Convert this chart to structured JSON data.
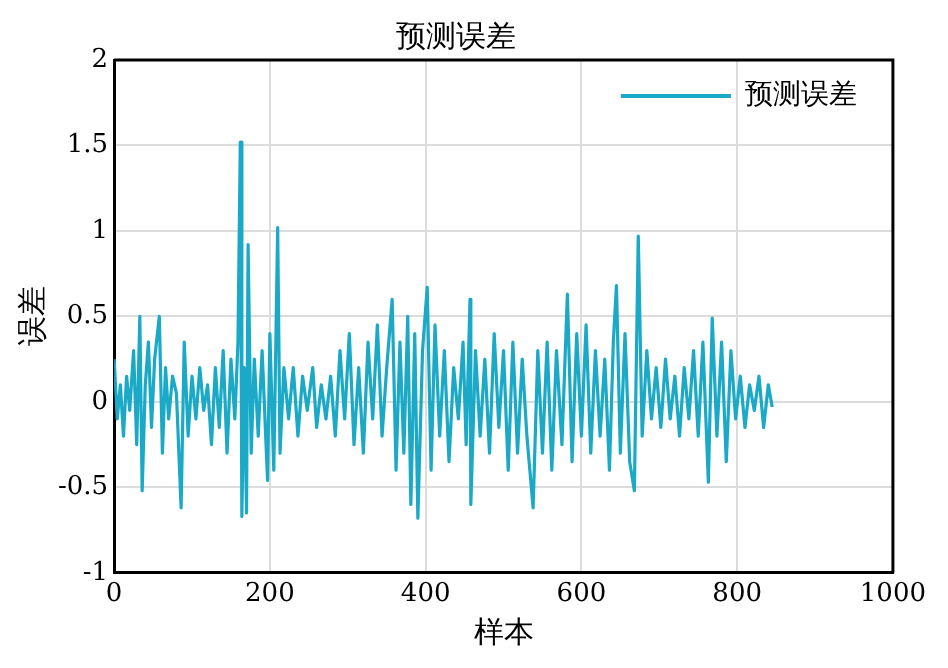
{
  "chart_data": {
    "type": "line",
    "title": "预测误差",
    "xlabel": "样本",
    "ylabel": "误差",
    "xlim": [
      0,
      1000
    ],
    "xticks": [
      0,
      200,
      400,
      600,
      800,
      1000
    ],
    "ylim": [
      -1,
      2
    ],
    "yticks": [
      -1,
      -0.5,
      0,
      0.5,
      1,
      1.5,
      2
    ],
    "grid": true,
    "legend": "top right",
    "marker": "none",
    "line_style": "solid",
    "series": [
      {
        "name": "预测误差",
        "color": "#1aa9c6",
        "x": [
          0,
          4,
          8,
          12,
          16,
          20,
          25,
          29,
          33,
          36,
          40,
          44,
          48,
          52,
          58,
          62,
          66,
          70,
          75,
          80,
          86,
          90,
          95,
          100,
          105,
          110,
          115,
          120,
          125,
          130,
          135,
          140,
          145,
          150,
          155,
          159,
          162,
          164,
          167,
          170,
          172,
          176,
          180,
          185,
          190,
          197,
          200,
          205,
          210,
          213,
          218,
          224,
          230,
          236,
          242,
          248,
          255,
          260,
          266,
          272,
          278,
          284,
          290,
          296,
          302,
          308,
          314,
          320,
          326,
          332,
          338,
          344,
          350,
          357,
          362,
          367,
          372,
          377,
          381,
          386,
          390,
          396,
          402,
          407,
          412,
          418,
          424,
          430,
          436,
          442,
          448,
          452,
          457,
          458,
          464,
          470,
          476,
          482,
          488,
          494,
          500,
          506,
          512,
          518,
          524,
          530,
          538,
          544,
          550,
          556,
          562,
          568,
          575,
          582,
          588,
          594,
          600,
          606,
          612,
          618,
          624,
          630,
          636,
          641,
          645,
          650,
          656,
          662,
          668,
          673,
          678,
          684,
          690,
          696,
          702,
          708,
          714,
          720,
          726,
          732,
          738,
          744,
          750,
          756,
          763,
          768,
          774,
          780,
          786,
          792,
          798,
          804,
          810,
          816,
          822,
          828,
          834,
          840,
          845
        ],
        "values": [
          0.25,
          -0.1,
          0.1,
          -0.2,
          0.15,
          -0.05,
          0.3,
          -0.25,
          0.5,
          -0.52,
          0.1,
          0.35,
          -0.15,
          0.25,
          0.5,
          -0.3,
          0.2,
          -0.1,
          0.15,
          0.05,
          -0.62,
          0.35,
          -0.2,
          0.15,
          -0.1,
          0.2,
          -0.05,
          0.1,
          -0.25,
          0.2,
          -0.15,
          0.3,
          -0.3,
          0.25,
          -0.1,
          0.35,
          1.52,
          -0.67,
          0.2,
          -0.65,
          0.92,
          -0.3,
          0.25,
          -0.2,
          0.3,
          -0.46,
          0.4,
          -0.4,
          1.02,
          -0.3,
          0.2,
          -0.1,
          0.2,
          -0.2,
          0.15,
          -0.05,
          0.2,
          -0.15,
          0.1,
          -0.1,
          0.15,
          -0.2,
          0.3,
          -0.1,
          0.4,
          -0.25,
          0.2,
          -0.3,
          0.35,
          -0.1,
          0.45,
          -0.2,
          0.2,
          0.6,
          -0.4,
          0.35,
          -0.3,
          0.5,
          -0.6,
          0.4,
          -0.68,
          0.3,
          0.67,
          -0.4,
          0.45,
          -0.2,
          0.3,
          -0.35,
          0.2,
          -0.1,
          0.35,
          -0.25,
          0.6,
          -0.6,
          0.3,
          -0.2,
          0.25,
          -0.3,
          0.4,
          -0.15,
          0.3,
          -0.4,
          0.35,
          -0.3,
          0.25,
          -0.2,
          -0.62,
          0.3,
          -0.3,
          0.35,
          -0.4,
          0.3,
          -0.25,
          0.63,
          -0.35,
          0.4,
          -0.2,
          0.45,
          -0.3,
          0.3,
          -0.2,
          0.25,
          -0.4,
          0.35,
          0.68,
          -0.3,
          0.4,
          -0.35,
          -0.52,
          0.97,
          -0.2,
          0.3,
          -0.1,
          0.2,
          -0.15,
          0.25,
          -0.1,
          0.15,
          -0.2,
          0.2,
          -0.1,
          0.3,
          -0.2,
          0.35,
          -0.47,
          0.49,
          -0.2,
          0.35,
          -0.35,
          0.3,
          -0.1,
          0.15,
          -0.15,
          0.1,
          -0.05,
          0.15,
          -0.15,
          0.1,
          -0.03
        ]
      }
    ]
  }
}
